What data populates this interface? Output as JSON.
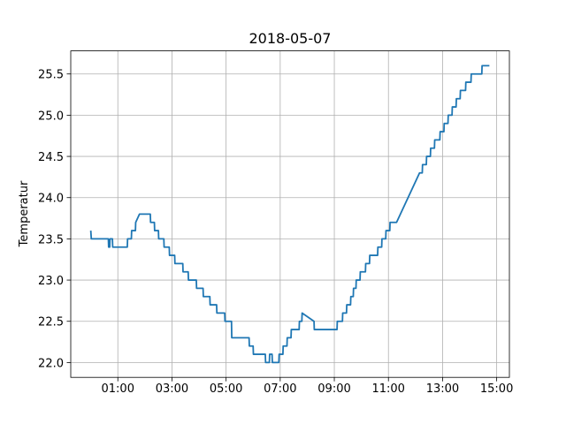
{
  "chart_data": {
    "type": "line",
    "title": "2018-05-07",
    "y_label": "Temperatur",
    "x": [
      0.0,
      0.02,
      0.65,
      0.66,
      0.7,
      0.71,
      0.8,
      0.81,
      0.9,
      1.35,
      1.36,
      1.5,
      1.51,
      1.65,
      1.66,
      1.8,
      2.2,
      2.21,
      2.35,
      2.36,
      2.5,
      2.51,
      2.7,
      2.71,
      2.9,
      2.91,
      3.1,
      3.11,
      3.4,
      3.41,
      3.6,
      3.61,
      3.9,
      3.91,
      4.15,
      4.16,
      4.4,
      4.41,
      4.65,
      4.66,
      4.95,
      4.96,
      5.2,
      5.21,
      5.85,
      5.86,
      6.0,
      6.01,
      6.45,
      6.46,
      6.6,
      6.61,
      6.7,
      6.71,
      6.95,
      6.96,
      7.1,
      7.11,
      7.25,
      7.26,
      7.4,
      7.41,
      7.7,
      7.71,
      7.8,
      7.81,
      8.25,
      8.26,
      9.1,
      9.11,
      9.3,
      9.31,
      9.45,
      9.46,
      9.6,
      9.61,
      9.7,
      9.71,
      9.8,
      9.81,
      9.95,
      9.96,
      10.15,
      10.16,
      10.3,
      10.31,
      10.6,
      10.61,
      10.75,
      10.76,
      10.9,
      10.91,
      11.05,
      11.06,
      11.3,
      12.15,
      12.25,
      12.26,
      12.4,
      12.41,
      12.55,
      12.56,
      12.7,
      12.71,
      12.9,
      12.91,
      13.05,
      13.06,
      13.2,
      13.21,
      13.35,
      13.36,
      13.5,
      13.51,
      13.65,
      13.66,
      13.85,
      13.86,
      14.05,
      14.06,
      14.45,
      14.46,
      14.73
    ],
    "y_values": [
      23.6,
      23.5,
      23.5,
      23.4,
      23.4,
      23.5,
      23.5,
      23.4,
      23.4,
      23.4,
      23.5,
      23.5,
      23.6,
      23.6,
      23.7,
      23.8,
      23.8,
      23.7,
      23.7,
      23.6,
      23.6,
      23.5,
      23.5,
      23.4,
      23.4,
      23.3,
      23.3,
      23.2,
      23.2,
      23.1,
      23.1,
      23.0,
      23.0,
      22.9,
      22.9,
      22.8,
      22.8,
      22.7,
      22.7,
      22.6,
      22.6,
      22.5,
      22.5,
      22.3,
      22.3,
      22.2,
      22.2,
      22.1,
      22.1,
      22.0,
      22.0,
      22.1,
      22.1,
      22.0,
      22.0,
      22.1,
      22.1,
      22.2,
      22.2,
      22.3,
      22.3,
      22.4,
      22.4,
      22.5,
      22.5,
      22.6,
      22.5,
      22.4,
      22.4,
      22.5,
      22.5,
      22.6,
      22.6,
      22.7,
      22.7,
      22.8,
      22.8,
      22.9,
      22.9,
      23.0,
      23.0,
      23.1,
      23.1,
      23.2,
      23.2,
      23.3,
      23.3,
      23.4,
      23.4,
      23.5,
      23.5,
      23.6,
      23.6,
      23.7,
      23.7,
      24.3,
      24.3,
      24.4,
      24.4,
      24.5,
      24.5,
      24.6,
      24.6,
      24.7,
      24.7,
      24.8,
      24.8,
      24.9,
      24.9,
      25.0,
      25.0,
      25.1,
      25.1,
      25.2,
      25.2,
      25.3,
      25.3,
      25.4,
      25.4,
      25.5,
      25.5,
      25.6,
      25.6
    ],
    "color": "#1f77b4",
    "xlim": [
      -0.74,
      15.47
    ],
    "xticks": [
      {
        "value": 1,
        "label": "01:00"
      },
      {
        "value": 3,
        "label": "03:00"
      },
      {
        "value": 5,
        "label": "05:00"
      },
      {
        "value": 7,
        "label": "07:00"
      },
      {
        "value": 9,
        "label": "09:00"
      },
      {
        "value": 11,
        "label": "11:00"
      },
      {
        "value": 13,
        "label": "13:00"
      },
      {
        "value": 15,
        "label": "15:00"
      }
    ],
    "ylim": [
      21.82,
      25.78
    ],
    "yticks": [
      {
        "value": 22,
        "label": "22.0"
      },
      22.5,
      {
        "value": 23,
        "label": "23.0"
      },
      23.5,
      {
        "value": 24,
        "label": "24.0"
      },
      24.5,
      {
        "value": 25,
        "label": "25.0"
      },
      25.5
    ],
    "grid": true
  }
}
